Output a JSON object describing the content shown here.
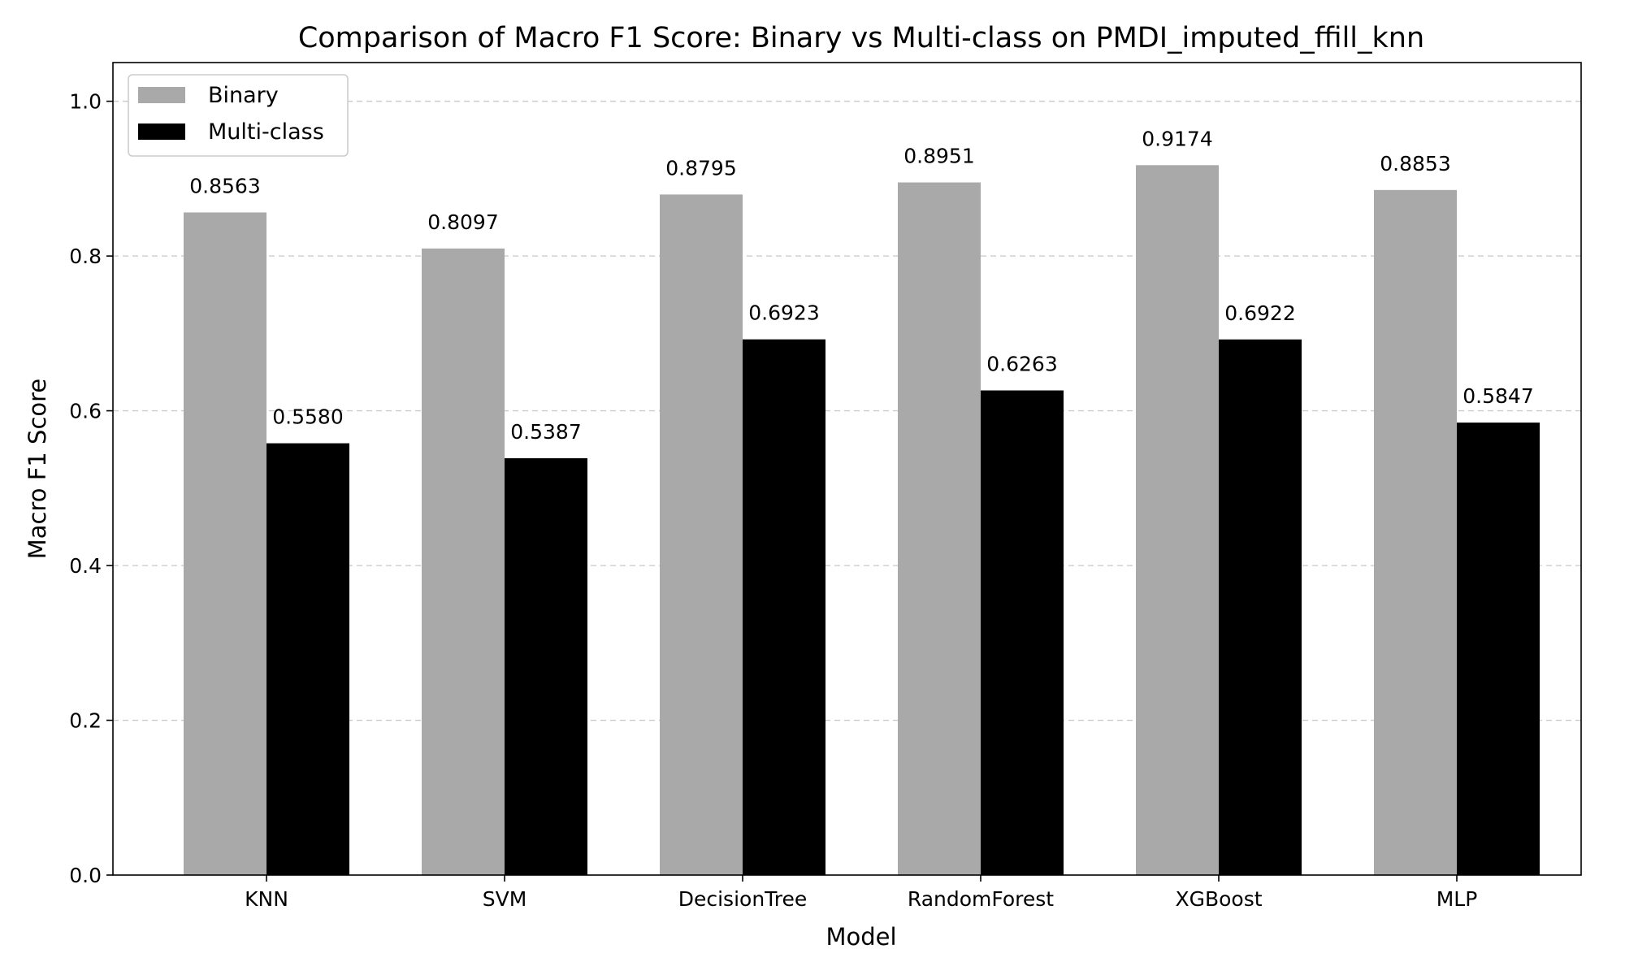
{
  "chart_data": {
    "type": "bar",
    "title": "Comparison of Macro F1 Score: Binary vs Multi-class on PMDI_imputed_ffill_knn",
    "xlabel": "Model",
    "ylabel": "Macro F1 Score",
    "ylim": [
      0,
      1.05
    ],
    "yticks": [
      "0.0",
      "0.2",
      "0.4",
      "0.6",
      "0.8",
      "1.0"
    ],
    "categories": [
      "KNN",
      "SVM",
      "DecisionTree",
      "RandomForest",
      "XGBoost",
      "MLP"
    ],
    "series": [
      {
        "name": "Binary",
        "color": "#a9a9a9",
        "values": [
          0.8563,
          0.8097,
          0.8795,
          0.8951,
          0.9174,
          0.8853
        ],
        "labels": [
          "0.8563",
          "0.8097",
          "0.8795",
          "0.8951",
          "0.9174",
          "0.8853"
        ]
      },
      {
        "name": "Multi-class",
        "color": "#000000",
        "values": [
          0.558,
          0.5387,
          0.6923,
          0.6263,
          0.6922,
          0.5847
        ],
        "labels": [
          "0.5580",
          "0.5387",
          "0.6923",
          "0.6263",
          "0.6922",
          "0.5847"
        ]
      }
    ],
    "grid": "y-dashed",
    "legend": "top-left"
  }
}
